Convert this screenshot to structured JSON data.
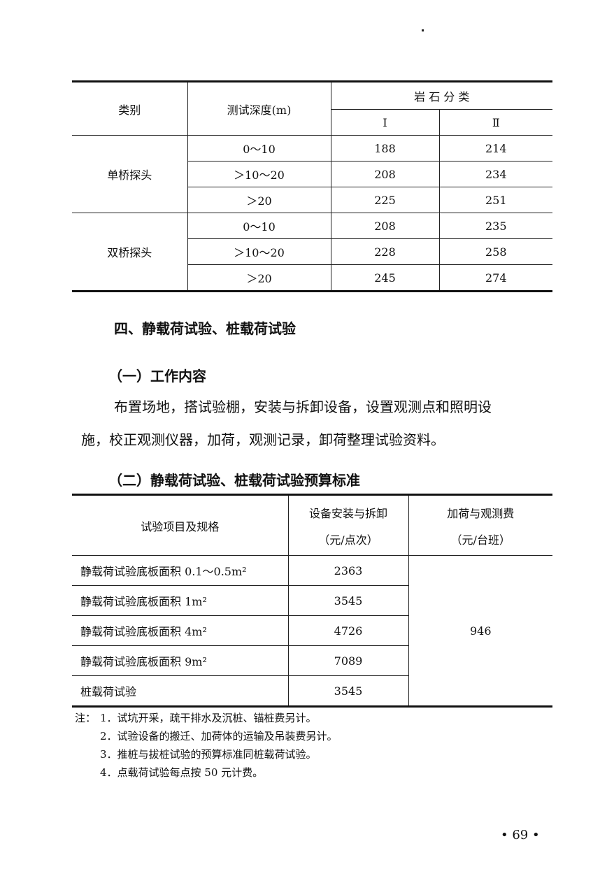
{
  "table1": {
    "headers": {
      "category": "类别",
      "depth": "测试深度(m)",
      "rock_class": "岩 石 分 类",
      "class_1": "Ⅰ",
      "class_2": "Ⅱ"
    },
    "groups": [
      {
        "name": "单桥探头",
        "rows": [
          {
            "depth": "0～10",
            "c1": "188",
            "c2": "214"
          },
          {
            "depth": "＞10～20",
            "c1": "208",
            "c2": "234"
          },
          {
            "depth": "＞20",
            "c1": "225",
            "c2": "251"
          }
        ]
      },
      {
        "name": "双桥探头",
        "rows": [
          {
            "depth": "0～10",
            "c1": "208",
            "c2": "235"
          },
          {
            "depth": "＞10～20",
            "c1": "228",
            "c2": "258"
          },
          {
            "depth": "＞20",
            "c1": "245",
            "c2": "274"
          }
        ]
      }
    ]
  },
  "section_title": "四、静载荷试验、桩载荷试验",
  "sub1_title": "（一）工作内容",
  "paragraph_line1": "布置场地，搭试验棚，安装与拆卸设备，设置观测点和照明设",
  "paragraph_line2": "施，校正观测仪器，加荷，观测记录，卸荷整理试验资料。",
  "sub2_title": "（二）静载荷试验、桩载荷试验预算标准",
  "table2": {
    "headers": {
      "item": "试验项目及规格",
      "install": "设备安装与拆卸",
      "install_unit": "（元/点次）",
      "load": "加荷与观测费",
      "load_unit": "（元/台班）"
    },
    "rows": [
      {
        "item": "静载荷试验底板面积 0.1～0.5m²",
        "install": "2363"
      },
      {
        "item": "静载荷试验底板面积 1m²",
        "install": "3545"
      },
      {
        "item": "静载荷试验底板面积 4m²",
        "install": "4726"
      },
      {
        "item": "静载荷试验底板面积 9m²",
        "install": "7089"
      },
      {
        "item": "桩载荷试验",
        "install": "3545"
      }
    ],
    "load_value": "946"
  },
  "notes": {
    "label": "注：",
    "items": [
      "1．试坑开采，疏干排水及沉桩、锚桩费另计。",
      "2．试验设备的搬迁、加荷体的运输及吊装费另计。",
      "3．推桩与拔桩试验的预算标准同桩载荷试验。",
      "4．点载荷试验每点按 50 元计费。"
    ]
  },
  "page_number": "• 69 •"
}
